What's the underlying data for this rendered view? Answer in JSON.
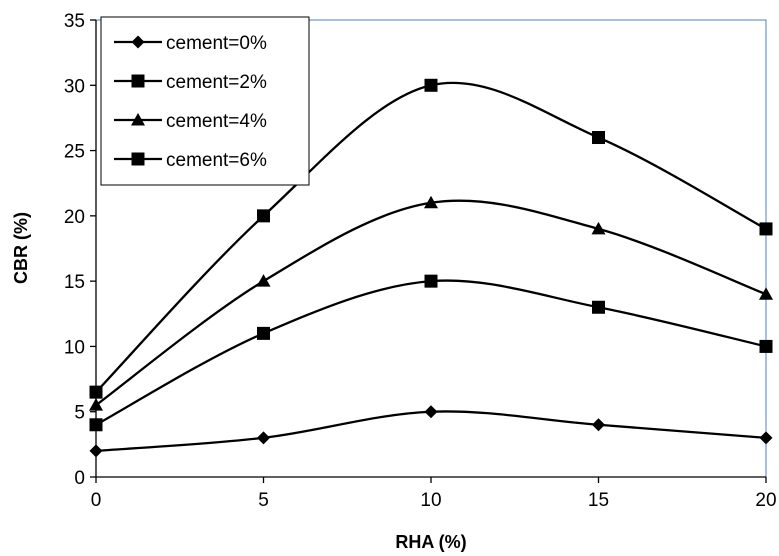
{
  "chart_data": {
    "type": "line",
    "xlabel": "RHA (%)",
    "ylabel": "CBR (%)",
    "xlim": [
      0,
      20
    ],
    "ylim": [
      0,
      35
    ],
    "xticks": [
      0,
      5,
      10,
      15,
      20
    ],
    "yticks": [
      0,
      5,
      10,
      15,
      20,
      25,
      30,
      35
    ],
    "x": [
      0,
      5,
      10,
      15,
      20
    ],
    "legend_position": "top-left",
    "grid": false,
    "line_color": "#000000",
    "plot_border_color": "#4f81bd",
    "series": [
      {
        "name": "cement=0%",
        "marker": "diamond",
        "values": [
          2,
          3,
          5,
          4,
          3
        ]
      },
      {
        "name": "cement=2%",
        "marker": "square",
        "values": [
          4,
          11,
          15,
          13,
          10
        ]
      },
      {
        "name": "cement=4%",
        "marker": "triangle",
        "values": [
          5.5,
          15,
          21,
          19,
          14
        ]
      },
      {
        "name": "cement=6%",
        "marker": "square",
        "values": [
          6.5,
          20,
          30,
          26,
          19
        ]
      }
    ]
  }
}
